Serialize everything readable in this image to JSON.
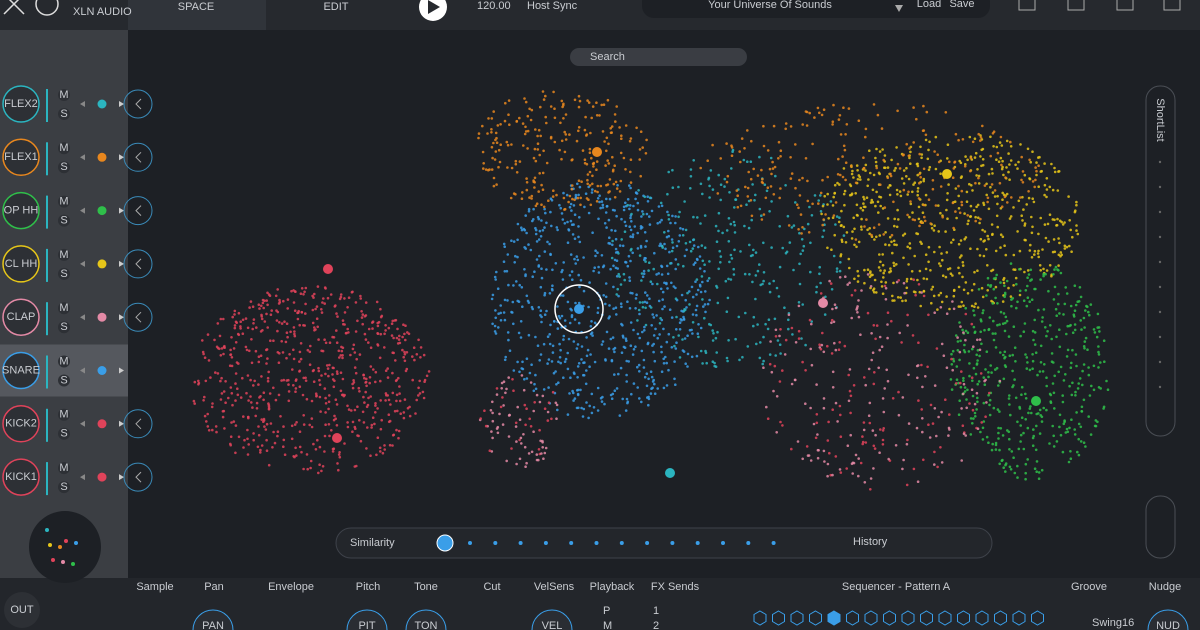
{
  "header": {
    "logo": "XLN AUDIO",
    "tabs": [
      "SPACE",
      "EDIT"
    ],
    "tempo": "120.00",
    "host_sync": "Host Sync",
    "preset": "Your Universe Of Sounds",
    "load": "Load",
    "save": "Save"
  },
  "search": "Search",
  "shortlist": "ShortList",
  "mute": "M",
  "solo": "S",
  "tracks": [
    {
      "name": "FLEX2",
      "color": "#2bb5c0"
    },
    {
      "name": "FLEX1",
      "color": "#e8871e"
    },
    {
      "name": "OP HH",
      "color": "#2fbf4a"
    },
    {
      "name": "CL HH",
      "color": "#e6c619"
    },
    {
      "name": "CLAP",
      "color": "#e48aa6"
    },
    {
      "name": "SNARE",
      "color": "#3a9ee8"
    },
    {
      "name": "KICK2",
      "color": "#e0435a"
    },
    {
      "name": "KICK1",
      "color": "#e0435a"
    }
  ],
  "output": "OUT",
  "history_bar": {
    "similarity": "Similarity",
    "history": "History"
  },
  "bottom": {
    "sections": [
      "Sample",
      "Pan",
      "Envelope",
      "Pitch",
      "Tone",
      "Cut",
      "VelSens",
      "Playback",
      "FX Sends",
      "Sequencer - Pattern A",
      "Groove",
      "Nudge"
    ],
    "knobs": [
      "PAN",
      "PIT",
      "TON",
      "VEL",
      "NUD"
    ],
    "sends": [
      "1",
      "2"
    ],
    "playback": [
      "P",
      "M"
    ],
    "swing": "Swing16"
  }
}
